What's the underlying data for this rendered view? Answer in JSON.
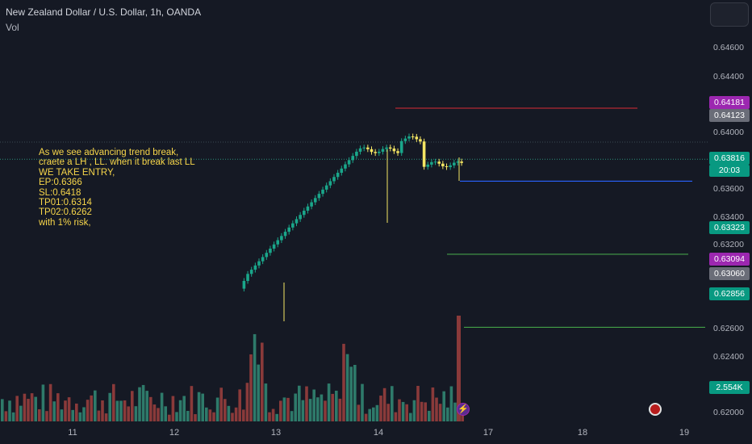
{
  "header": {
    "title": "New Zealand Dollar / U.S. Dollar, 1h, OANDA",
    "vol_label": "Vol"
  },
  "note": {
    "lines": [
      "As we see advancing trend break,",
      "craete a LH , LL. when it break last LL",
      "WE TAKE ENTRY,",
      "EP:0.6366",
      "SL:0.6418",
      "TP01:0.6314",
      "TP02:0.6262",
      "with 1% risk,"
    ]
  },
  "price_axis": {
    "ticks": [
      "0.64600",
      "0.64400",
      "0.64000",
      "0.63600",
      "0.63400",
      "0.63200",
      "0.62600",
      "0.62400",
      "0.62000"
    ]
  },
  "badges": [
    {
      "label": "0.64181",
      "color": "#9c27b0"
    },
    {
      "label": "0.64123",
      "color": "#6a6d78"
    },
    {
      "label": "0.63816",
      "color": "#089981"
    },
    {
      "label": "0.63323",
      "color": "#089981"
    },
    {
      "label": "0.63094",
      "color": "#9c27b0"
    },
    {
      "label": "0.63060",
      "color": "#6a6d78"
    },
    {
      "label": "0.62856",
      "color": "#089981"
    },
    {
      "label": "2.554K",
      "color": "#089981"
    }
  ],
  "countdown": "20:03",
  "time_axis": {
    "ticks": [
      "11",
      "12",
      "13",
      "14",
      "17",
      "18",
      "19"
    ]
  },
  "chart_data": {
    "type": "candlestick",
    "symbol": "NZDUSD",
    "interval": "1h",
    "price_range": [
      0.6195,
      0.6472
    ],
    "current_price": 0.63816,
    "horizontal_lines": [
      {
        "price": 0.6418,
        "color": "#b22833"
      },
      {
        "price": 0.6366,
        "color": "#2962ff"
      },
      {
        "price": 0.6314,
        "color": "#43a047"
      },
      {
        "price": 0.6262,
        "color": "#43a047"
      }
    ]
  },
  "colors": {
    "up": "#1aa68a",
    "down": "#f5e663",
    "volume_up": "#2e7a6a",
    "volume_down": "#8a3a3a"
  }
}
